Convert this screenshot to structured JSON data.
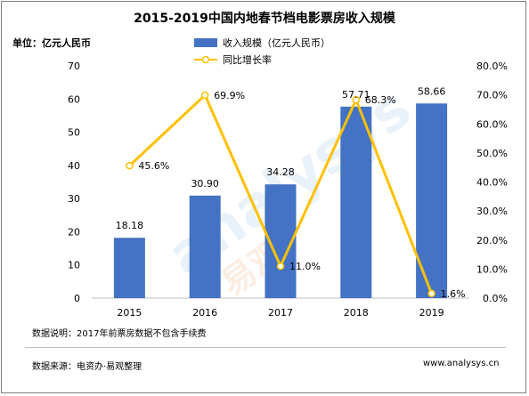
{
  "title": "2015-2019中国内地春节档电影票房收入规模",
  "unit_label": "单位：亿元人民币",
  "note": "数据说明：2017年前票房数据不包含手续费",
  "source": "数据来源：电资办·易观整理",
  "website": "www.analysys.cn",
  "colors": {
    "bar": "#4472c4",
    "line": "#ffc000",
    "marker_fill": "#ffffff",
    "axis": "#bfbfbf"
  },
  "chart_data": {
    "type": "bar",
    "categories": [
      "2015",
      "2016",
      "2017",
      "2018",
      "2019"
    ],
    "series": [
      {
        "name": "收入规模（亿元人民币）",
        "type": "bar",
        "axis": "left",
        "values": [
          18.18,
          30.9,
          34.28,
          57.71,
          58.66
        ],
        "labels": [
          "18.18",
          "30.90",
          "34.28",
          "57.71",
          "58.66"
        ]
      },
      {
        "name": "同比增长率",
        "type": "line",
        "axis": "right",
        "values": [
          45.6,
          69.9,
          11.0,
          68.3,
          1.6
        ],
        "labels": [
          "45.6%",
          "69.9%",
          "11.0%",
          "68.3%",
          "1.6%"
        ]
      }
    ],
    "ylim": [
      0,
      70
    ],
    "yticks": [
      "0",
      "10",
      "20",
      "30",
      "40",
      "50",
      "60",
      "70"
    ],
    "y2lim": [
      0,
      80
    ],
    "y2ticks": [
      "0.0%",
      "10.0%",
      "20.0%",
      "30.0%",
      "40.0%",
      "50.0%",
      "60.0%",
      "70.0%",
      "80.0%"
    ],
    "legend_position": "top-center",
    "grid": false
  }
}
